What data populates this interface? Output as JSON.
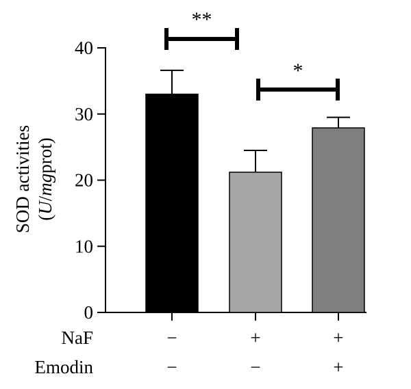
{
  "chart_data": {
    "type": "bar",
    "title": "",
    "ylabel_line1": "SOD activities",
    "ylabel_line2": "(U/mgprot)",
    "ylabel_unit_parts": [
      "(",
      "U",
      "/",
      "mg",
      "prot)"
    ],
    "ylim": [
      0,
      40
    ],
    "yticks": [
      0,
      10,
      20,
      30,
      40
    ],
    "grid": false,
    "legend": "none",
    "categories": [
      "NaF − / Emodin −",
      "NaF + / Emodin −",
      "NaF + / Emodin +"
    ],
    "values": [
      33.0,
      21.2,
      27.9
    ],
    "errors": [
      3.6,
      3.3,
      1.6
    ],
    "colors": [
      "#000000",
      "#a6a6a6",
      "#7f7f7f"
    ],
    "factors": [
      {
        "name": "NaF",
        "signs": [
          "−",
          "+",
          "+"
        ]
      },
      {
        "name": "Emodin",
        "signs": [
          "−",
          "−",
          "+"
        ]
      }
    ],
    "significance": [
      {
        "from": 0,
        "to": 1,
        "label": "**"
      },
      {
        "from": 1,
        "to": 2,
        "label": "*"
      }
    ]
  }
}
